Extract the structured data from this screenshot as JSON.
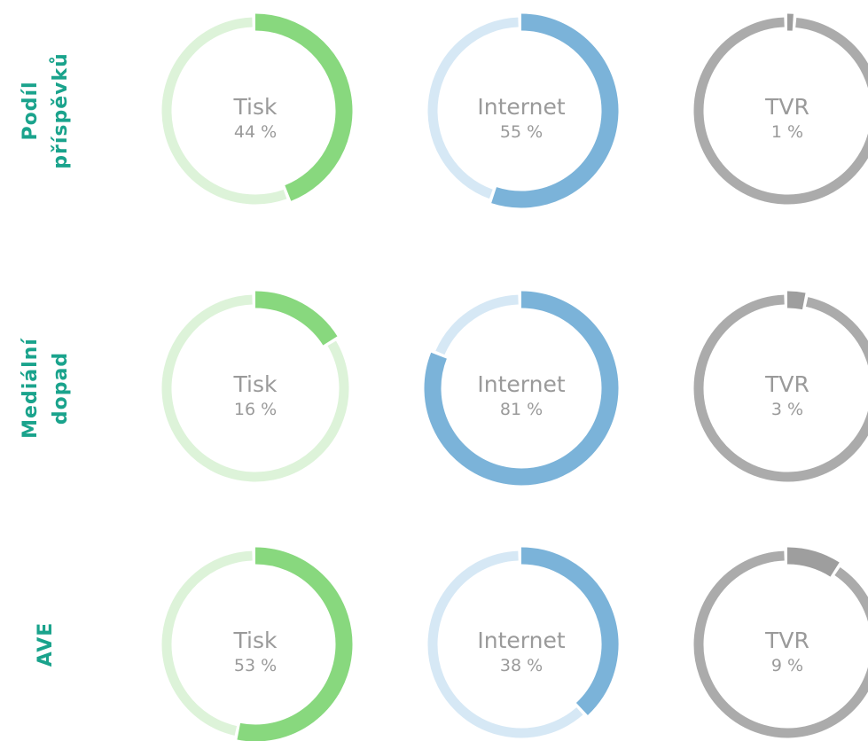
{
  "row_labels": [
    "Podíl příspěvků",
    "Mediální dopad",
    "AVE"
  ],
  "chart_data": [
    {
      "type": "donut",
      "row": 0,
      "label": "Tisk",
      "value": 44,
      "value_label": "44 %",
      "color": "#88d87e",
      "track_color": "#ddf3d9"
    },
    {
      "type": "donut",
      "row": 0,
      "label": "Internet",
      "value": 55,
      "value_label": "55 %",
      "color": "#7bb3d9",
      "track_color": "#d6e8f5"
    },
    {
      "type": "donut",
      "row": 0,
      "label": "TVR",
      "value": 1,
      "value_label": "1 %",
      "color": "#9e9e9e",
      "track_color": "#ababab"
    },
    {
      "type": "donut",
      "row": 1,
      "label": "Tisk",
      "value": 16,
      "value_label": "16 %",
      "color": "#88d87e",
      "track_color": "#ddf3d9"
    },
    {
      "type": "donut",
      "row": 1,
      "label": "Internet",
      "value": 81,
      "value_label": "81 %",
      "color": "#7bb3d9",
      "track_color": "#d6e8f5"
    },
    {
      "type": "donut",
      "row": 1,
      "label": "TVR",
      "value": 3,
      "value_label": "3 %",
      "color": "#9e9e9e",
      "track_color": "#ababab"
    },
    {
      "type": "donut",
      "row": 2,
      "label": "Tisk",
      "value": 53,
      "value_label": "53 %",
      "color": "#88d87e",
      "track_color": "#ddf3d9"
    },
    {
      "type": "donut",
      "row": 2,
      "label": "Internet",
      "value": 38,
      "value_label": "38 %",
      "color": "#7bb3d9",
      "track_color": "#d6e8f5"
    },
    {
      "type": "donut",
      "row": 2,
      "label": "TVR",
      "value": 9,
      "value_label": "9 %",
      "color": "#9e9e9e",
      "track_color": "#ababab"
    }
  ]
}
